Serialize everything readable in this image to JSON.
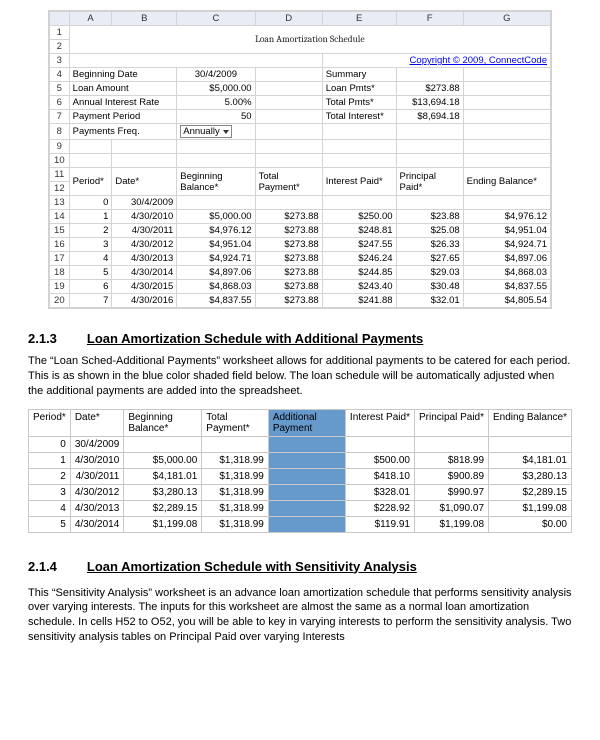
{
  "excel": {
    "cols": [
      "A",
      "B",
      "C",
      "D",
      "E",
      "F",
      "G"
    ],
    "title": "Loan Amortization Schedule",
    "copyright": "Copyright © 2009, ConnectCode",
    "inputs": {
      "begin_date_label": "Beginning Date",
      "begin_date": "30/4/2009",
      "loan_amount_label": "Loan Amount",
      "loan_amount": "$5,000.00",
      "rate_label": "Annual Interest Rate",
      "rate": "5.00%",
      "period_label": "Payment Period",
      "period": "50",
      "freq_label": "Payments Freq.",
      "freq_value": "Annually"
    },
    "summary": {
      "label": "Summary",
      "loan_pmts_label": "Loan Pmts*",
      "loan_pmts": "$273.88",
      "total_pmts_label": "Total Pmts*",
      "total_pmts": "$13,694.18",
      "total_interest_label": "Total Interest*",
      "total_interest": "$8,694.18"
    },
    "sched_headers": [
      "Period*",
      "Date*",
      "Beginning Balance*",
      "Total Payment*",
      "Interest Paid*",
      "Principal Paid*",
      "Ending Balance*"
    ],
    "sched_rows": [
      [
        "0",
        "30/4/2009",
        "",
        "",
        "",
        "",
        ""
      ],
      [
        "1",
        "4/30/2010",
        "$5,000.00",
        "$273.88",
        "$250.00",
        "$23.88",
        "$4,976.12"
      ],
      [
        "2",
        "4/30/2011",
        "$4,976.12",
        "$273.88",
        "$248.81",
        "$25.08",
        "$4,951.04"
      ],
      [
        "3",
        "4/30/2012",
        "$4,951.04",
        "$273.88",
        "$247.55",
        "$26.33",
        "$4,924.71"
      ],
      [
        "4",
        "4/30/2013",
        "$4,924.71",
        "$273.88",
        "$246.24",
        "$27.65",
        "$4,897.06"
      ],
      [
        "5",
        "4/30/2014",
        "$4,897.06",
        "$273.88",
        "$244.85",
        "$29.03",
        "$4,868.03"
      ],
      [
        "6",
        "4/30/2015",
        "$4,868.03",
        "$273.88",
        "$243.40",
        "$30.48",
        "$4,837.55"
      ],
      [
        "7",
        "4/30/2016",
        "$4,837.55",
        "$273.88",
        "$241.88",
        "$32.01",
        "$4,805.54"
      ]
    ],
    "row_nums": [
      "1",
      "2",
      "3",
      "4",
      "5",
      "6",
      "7",
      "8",
      "9",
      "10",
      "11",
      "12",
      "13",
      "14",
      "15",
      "16",
      "17",
      "18",
      "19",
      "20"
    ]
  },
  "sec213": {
    "num": "2.1.3",
    "title": "Loan Amortization Schedule with Additional Payments",
    "body": "The “Loan Sched-Additional Payments” worksheet allows for additional payments to be catered for each period. This is as shown in the blue color shaded field below. The loan schedule will be automatically adjusted when the additional payments are added into the spreadsheet.",
    "headers": [
      "Period*",
      "Date*",
      "Beginning Balance*",
      "Total Payment*",
      "Additional Payment",
      "Interest Paid*",
      "Principal Paid*",
      "Ending Balance*"
    ],
    "rows": [
      [
        "0",
        "30/4/2009",
        "",
        "",
        "",
        "",
        "",
        ""
      ],
      [
        "1",
        "4/30/2010",
        "$5,000.00",
        "$1,318.99",
        "",
        "$500.00",
        "$818.99",
        "$4,181.01"
      ],
      [
        "2",
        "4/30/2011",
        "$4,181.01",
        "$1,318.99",
        "",
        "$418.10",
        "$900.89",
        "$3,280.13"
      ],
      [
        "3",
        "4/30/2012",
        "$3,280.13",
        "$1,318.99",
        "",
        "$328.01",
        "$990.97",
        "$2,289.15"
      ],
      [
        "4",
        "4/30/2013",
        "$2,289.15",
        "$1,318.99",
        "",
        "$228.92",
        "$1,090.07",
        "$1,199.08"
      ],
      [
        "5",
        "4/30/2014",
        "$1,199.08",
        "$1,318.99",
        "",
        "$119.91",
        "$1,199.08",
        "$0.00"
      ]
    ]
  },
  "sec214": {
    "num": "2.1.4",
    "title": "Loan Amortization Schedule with Sensitivity Analysis",
    "body": "This “Sensitivity Analysis” worksheet is an advance loan amortization schedule that performs sensitivity analysis over varying interests. The inputs for this worksheet are almost the same as a normal loan amortization schedule. In cells H52 to O52, you will be able to key in varying interests to perform the sensitivity analysis. Two sensitivity analysis tables on Principal Paid over varying Interests"
  }
}
